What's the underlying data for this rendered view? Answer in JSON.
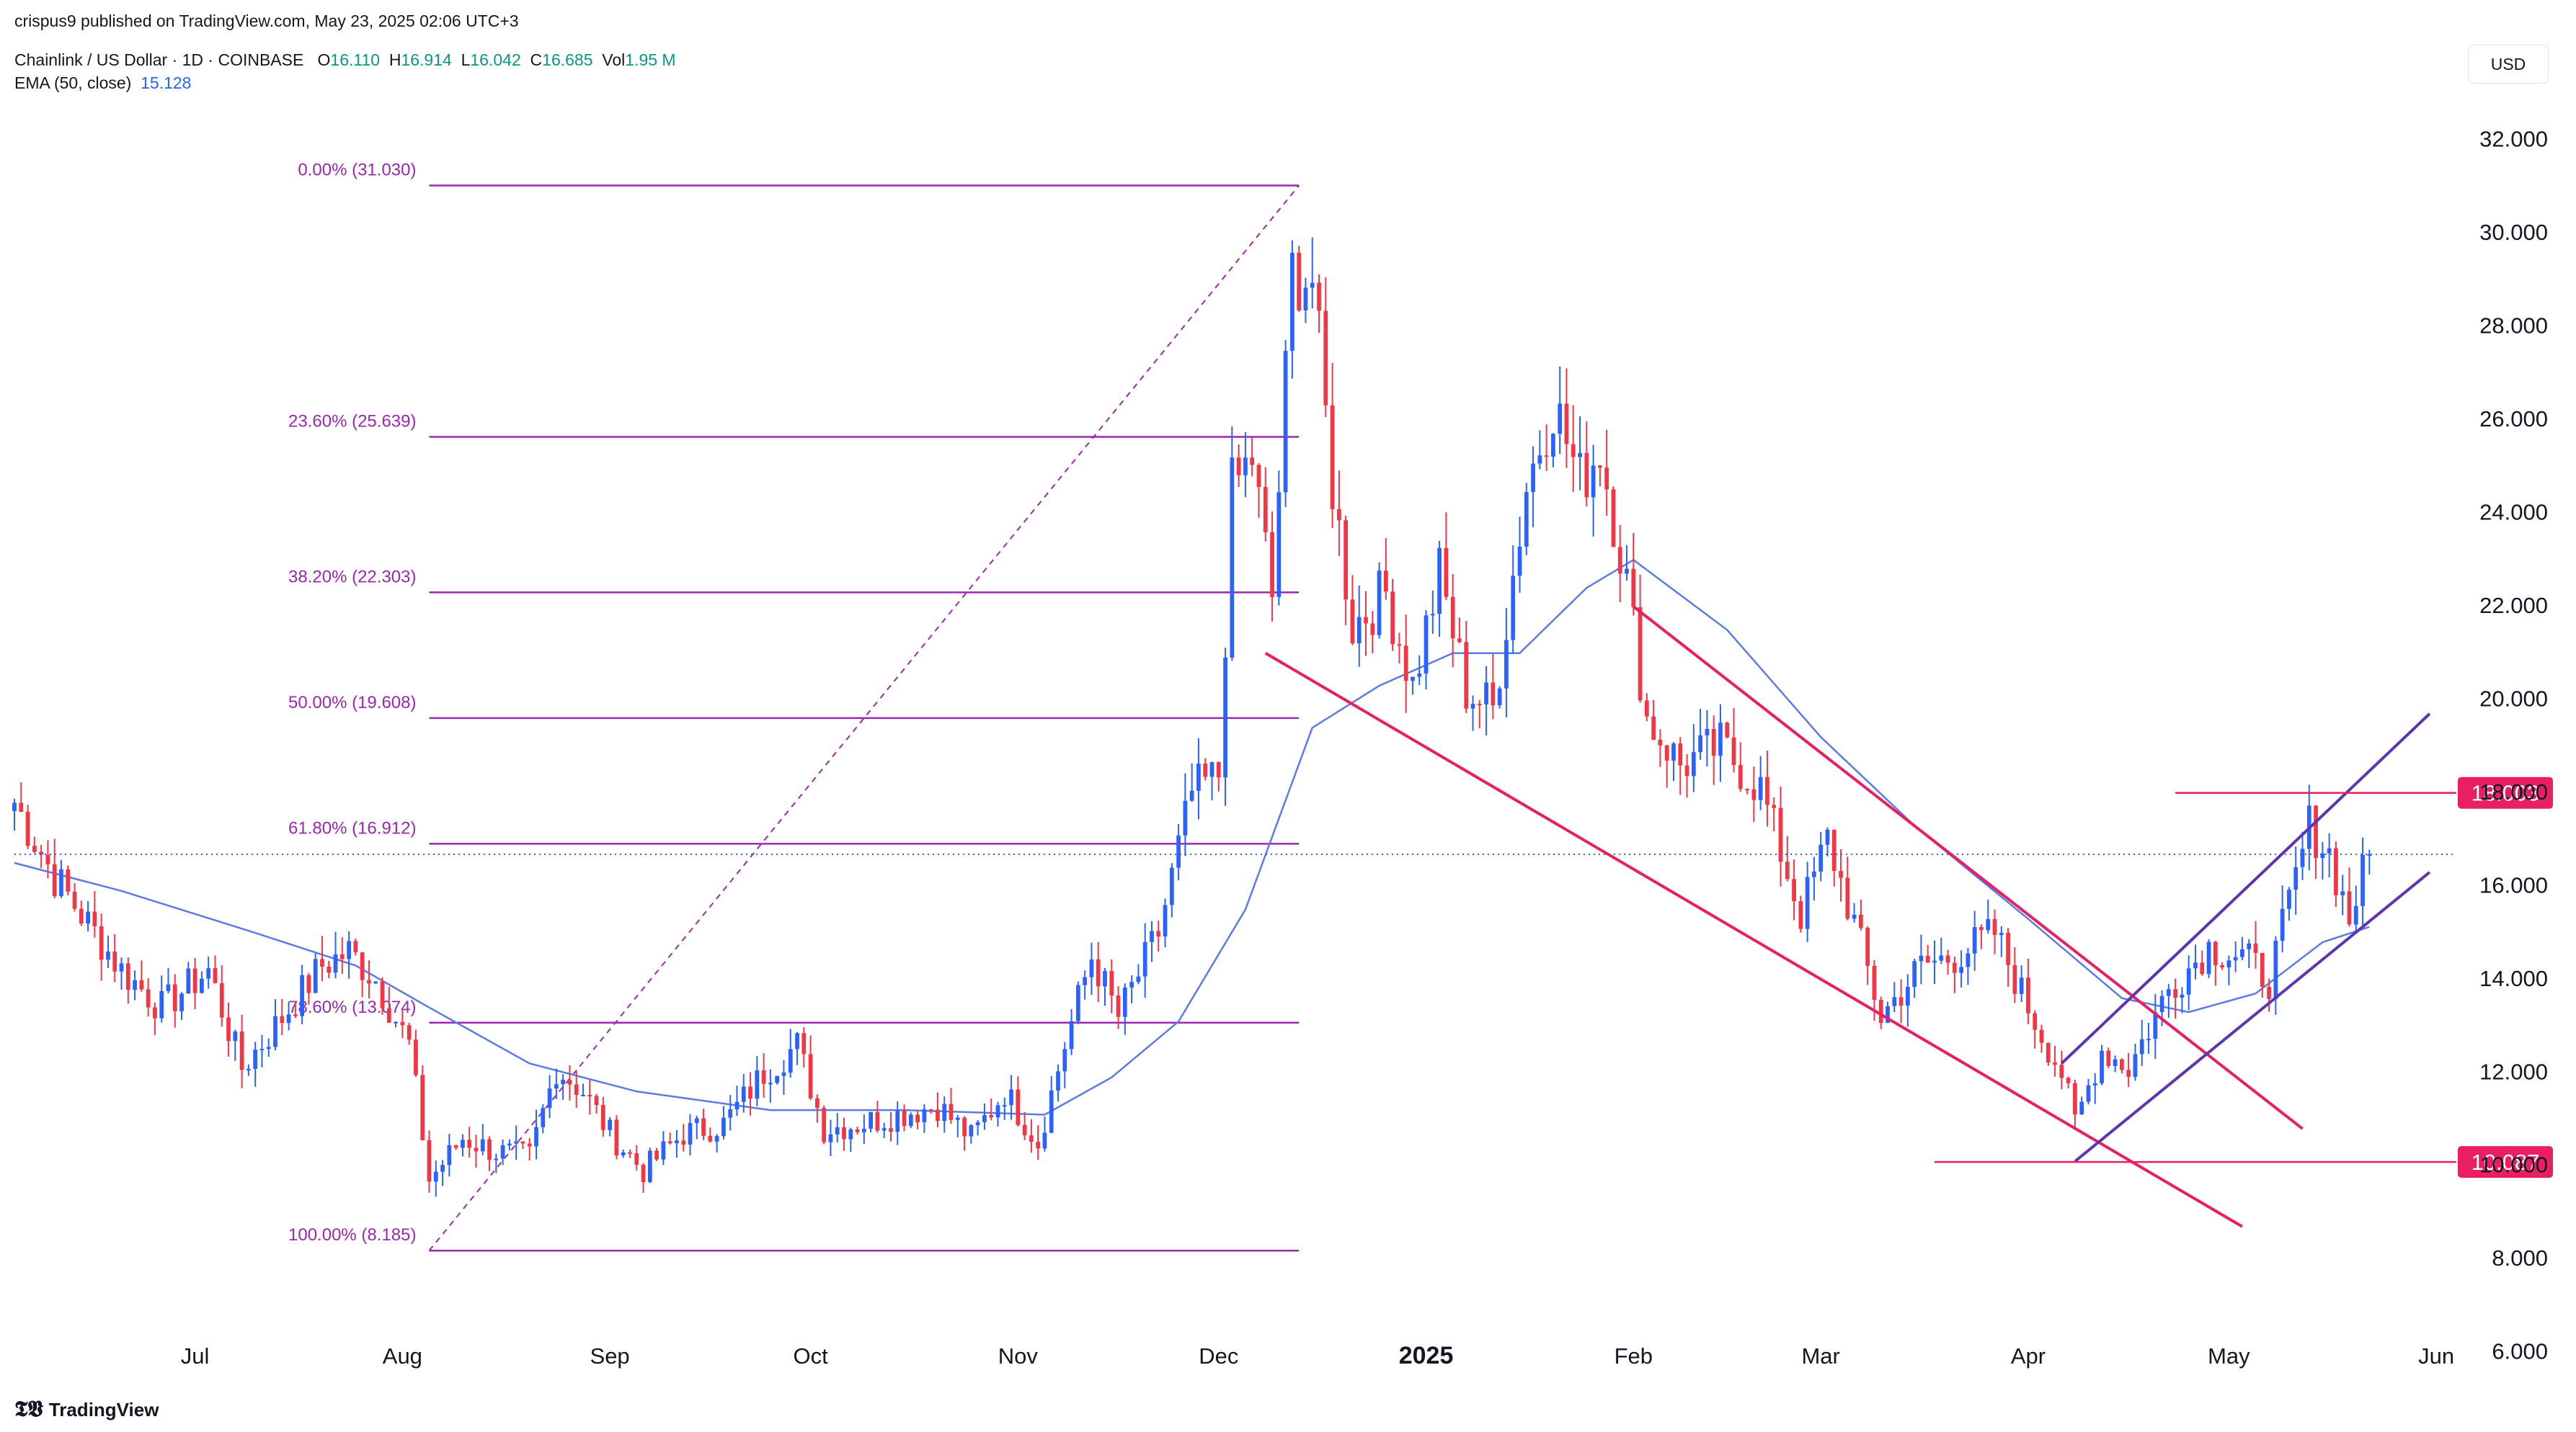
{
  "header": {
    "published": "crispus9 published on TradingView.com, May 23, 2025 02:06 UTC+3",
    "symbol": "Chainlink / US Dollar · 1D · COINBASE",
    "ohlc": {
      "o_label": "O",
      "o": "16.110",
      "h_label": "H",
      "h": "16.914",
      "l_label": "L",
      "l": "16.042",
      "c_label": "C",
      "c": "16.685",
      "vol_label": "Vol",
      "vol": "1.95 M"
    },
    "ema_label": "EMA (50, close)",
    "ema_value": "15.128",
    "currency": "USD"
  },
  "branding": {
    "logo": "tradingview-logo",
    "text": "TradingView"
  },
  "colors": {
    "up": "#2962ff",
    "down": "#f23645",
    "ema": "#5b7be8",
    "fib": "#9c27b0",
    "channel_down": "#e91e63",
    "channel_up": "#5e35b1",
    "tag": "#e91e63",
    "current": "#2962ff"
  },
  "chart_data": {
    "type": "candlestick",
    "title": "Chainlink / US Dollar · 1D · COINBASE",
    "xlabel": "",
    "ylabel": "",
    "ylim": [
      5.5,
      33
    ],
    "y_ticks": [
      "32.000",
      "30.000",
      "28.000",
      "26.000",
      "24.000",
      "22.000",
      "20.000",
      "18.000",
      "16.000",
      "14.000",
      "12.000",
      "10.000",
      "8.000",
      "6.000"
    ],
    "x_ticks": [
      {
        "label": "Jul",
        "date": "2024-07-01"
      },
      {
        "label": "Aug",
        "date": "2024-08-01"
      },
      {
        "label": "Sep",
        "date": "2024-09-01"
      },
      {
        "label": "Oct",
        "date": "2024-10-01"
      },
      {
        "label": "Nov",
        "date": "2024-11-01"
      },
      {
        "label": "Dec",
        "date": "2024-12-01"
      },
      {
        "label": "2025",
        "date": "2025-01-01",
        "bold": true
      },
      {
        "label": "Feb",
        "date": "2025-02-01"
      },
      {
        "label": "Mar",
        "date": "2025-03-01"
      },
      {
        "label": "Apr",
        "date": "2025-04-01"
      },
      {
        "label": "May",
        "date": "2025-05-01"
      },
      {
        "label": "Jun",
        "date": "2025-06-01"
      }
    ],
    "date_range": [
      "2024-06-04",
      "2025-06-04"
    ],
    "price_path": [
      [
        "2024-06-04",
        17.8
      ],
      [
        "2024-06-10",
        16.2
      ],
      [
        "2024-06-15",
        15.2
      ],
      [
        "2024-06-20",
        14.2
      ],
      [
        "2024-06-26",
        13.4
      ],
      [
        "2024-07-03",
        14.2
      ],
      [
        "2024-07-08",
        12.1
      ],
      [
        "2024-07-13",
        13.0
      ],
      [
        "2024-07-20",
        14.3
      ],
      [
        "2024-07-24",
        14.6
      ],
      [
        "2024-07-28",
        14.0
      ],
      [
        "2024-08-02",
        12.6
      ],
      [
        "2024-08-05",
        9.7
      ],
      [
        "2024-08-10",
        10.6
      ],
      [
        "2024-08-15",
        10.3
      ],
      [
        "2024-08-20",
        10.2
      ],
      [
        "2024-08-24",
        12.1
      ],
      [
        "2024-08-28",
        11.6
      ],
      [
        "2024-09-01",
        10.7
      ],
      [
        "2024-09-06",
        9.9
      ],
      [
        "2024-09-12",
        10.7
      ],
      [
        "2024-09-18",
        10.9
      ],
      [
        "2024-09-24",
        12.0
      ],
      [
        "2024-09-29",
        12.6
      ],
      [
        "2024-10-03",
        10.8
      ],
      [
        "2024-10-08",
        10.9
      ],
      [
        "2024-10-14",
        11.1
      ],
      [
        "2024-10-20",
        11.3
      ],
      [
        "2024-10-25",
        10.6
      ],
      [
        "2024-10-30",
        11.6
      ],
      [
        "2024-11-04",
        10.5
      ],
      [
        "2024-11-08",
        12.6
      ],
      [
        "2024-11-12",
        14.5
      ],
      [
        "2024-11-16",
        13.2
      ],
      [
        "2024-11-22",
        15.0
      ],
      [
        "2024-11-27",
        18.0
      ],
      [
        "2024-12-01",
        18.4
      ],
      [
        "2024-12-03",
        24.5
      ],
      [
        "2024-12-06",
        25.2
      ],
      [
        "2024-12-09",
        22.2
      ],
      [
        "2024-12-12",
        29.2
      ],
      [
        "2024-12-15",
        29.0
      ],
      [
        "2024-12-18",
        24.6
      ],
      [
        "2024-12-21",
        21.6
      ],
      [
        "2024-12-26",
        22.3
      ],
      [
        "2024-12-30",
        20.3
      ],
      [
        "2025-01-03",
        22.7
      ],
      [
        "2025-01-07",
        20.2
      ],
      [
        "2025-01-11",
        19.8
      ],
      [
        "2025-01-16",
        24.6
      ],
      [
        "2025-01-20",
        26.4
      ],
      [
        "2025-01-24",
        24.7
      ],
      [
        "2025-01-27",
        25.4
      ],
      [
        "2025-01-31",
        22.5
      ],
      [
        "2025-02-03",
        19.6
      ],
      [
        "2025-02-08",
        18.6
      ],
      [
        "2025-02-14",
        19.0
      ],
      [
        "2025-02-20",
        18.1
      ],
      [
        "2025-02-26",
        15.4
      ],
      [
        "2025-03-02",
        17.0
      ],
      [
        "2025-03-06",
        15.2
      ],
      [
        "2025-03-10",
        13.2
      ],
      [
        "2025-03-16",
        14.3
      ],
      [
        "2025-03-21",
        14.5
      ],
      [
        "2025-03-27",
        15.0
      ],
      [
        "2025-04-01",
        13.4
      ],
      [
        "2025-04-06",
        12.0
      ],
      [
        "2025-04-08",
        10.9
      ],
      [
        "2025-04-12",
        12.5
      ],
      [
        "2025-04-16",
        12.1
      ],
      [
        "2025-04-22",
        13.8
      ],
      [
        "2025-04-28",
        14.7
      ],
      [
        "2025-05-03",
        14.5
      ],
      [
        "2025-05-07",
        14.0
      ],
      [
        "2025-05-10",
        15.6
      ],
      [
        "2025-05-13",
        17.3
      ],
      [
        "2025-05-16",
        16.7
      ],
      [
        "2025-05-19",
        15.3
      ],
      [
        "2025-05-22",
        16.7
      ]
    ],
    "ema_path": [
      [
        "2024-06-04",
        16.5
      ],
      [
        "2024-06-20",
        15.9
      ],
      [
        "2024-07-10",
        15.0
      ],
      [
        "2024-07-25",
        14.3
      ],
      [
        "2024-08-05",
        13.4
      ],
      [
        "2024-08-20",
        12.2
      ],
      [
        "2024-09-05",
        11.6
      ],
      [
        "2024-09-25",
        11.2
      ],
      [
        "2024-10-15",
        11.2
      ],
      [
        "2024-11-05",
        11.1
      ],
      [
        "2024-11-15",
        11.9
      ],
      [
        "2024-11-25",
        13.1
      ],
      [
        "2024-12-05",
        15.5
      ],
      [
        "2024-12-15",
        19.4
      ],
      [
        "2024-12-25",
        20.3
      ],
      [
        "2025-01-05",
        21.0
      ],
      [
        "2025-01-15",
        21.0
      ],
      [
        "2025-01-25",
        22.4
      ],
      [
        "2025-02-01",
        23.0
      ],
      [
        "2025-02-15",
        21.5
      ],
      [
        "2025-03-01",
        19.2
      ],
      [
        "2025-03-15",
        17.3
      ],
      [
        "2025-04-01",
        15.3
      ],
      [
        "2025-04-15",
        13.6
      ],
      [
        "2025-04-25",
        13.3
      ],
      [
        "2025-05-05",
        13.7
      ],
      [
        "2025-05-15",
        14.8
      ],
      [
        "2025-05-22",
        15.128
      ]
    ],
    "fib_levels": [
      {
        "label": "0.00% (31.030)",
        "ratio": 0.0,
        "price": 31.03
      },
      {
        "label": "23.60% (25.639)",
        "ratio": 0.236,
        "price": 25.639
      },
      {
        "label": "38.20% (22.303)",
        "ratio": 0.382,
        "price": 22.303
      },
      {
        "label": "50.00% (19.608)",
        "ratio": 0.5,
        "price": 19.608
      },
      {
        "label": "61.80% (16.912)",
        "ratio": 0.618,
        "price": 16.912
      },
      {
        "label": "78.60% (13.074)",
        "ratio": 0.786,
        "price": 13.074
      },
      {
        "label": "100.00% (8.185)",
        "ratio": 1.0,
        "price": 8.185
      }
    ],
    "fib_range": {
      "start_date": "2024-08-05",
      "end_date": "2024-12-13",
      "low": 8.185,
      "high": 31.03
    },
    "trendlines": [
      {
        "name": "falling-upper",
        "color": "#e91e63",
        "from": [
          "2025-02-01",
          22.0
        ],
        "to": [
          "2025-05-12",
          10.8
        ]
      },
      {
        "name": "falling-lower",
        "color": "#e91e63",
        "from": [
          "2024-12-08",
          21.0
        ],
        "to": [
          "2025-05-03",
          8.7
        ]
      },
      {
        "name": "rising-upper",
        "color": "#5e35b1",
        "from": [
          "2025-04-06",
          12.2
        ],
        "to": [
          "2025-05-31",
          19.7
        ]
      },
      {
        "name": "rising-lower",
        "color": "#5e35b1",
        "from": [
          "2025-04-08",
          10.1
        ],
        "to": [
          "2025-05-31",
          16.3
        ]
      }
    ],
    "horizontal_levels": [
      {
        "price": 18.003,
        "label": "18.003",
        "from": "2025-04-23",
        "to": "2025-06-04"
      },
      {
        "price": 10.087,
        "label": "10.087",
        "from": "2025-03-18",
        "to": "2025-06-04"
      }
    ],
    "current_price": 16.685
  }
}
